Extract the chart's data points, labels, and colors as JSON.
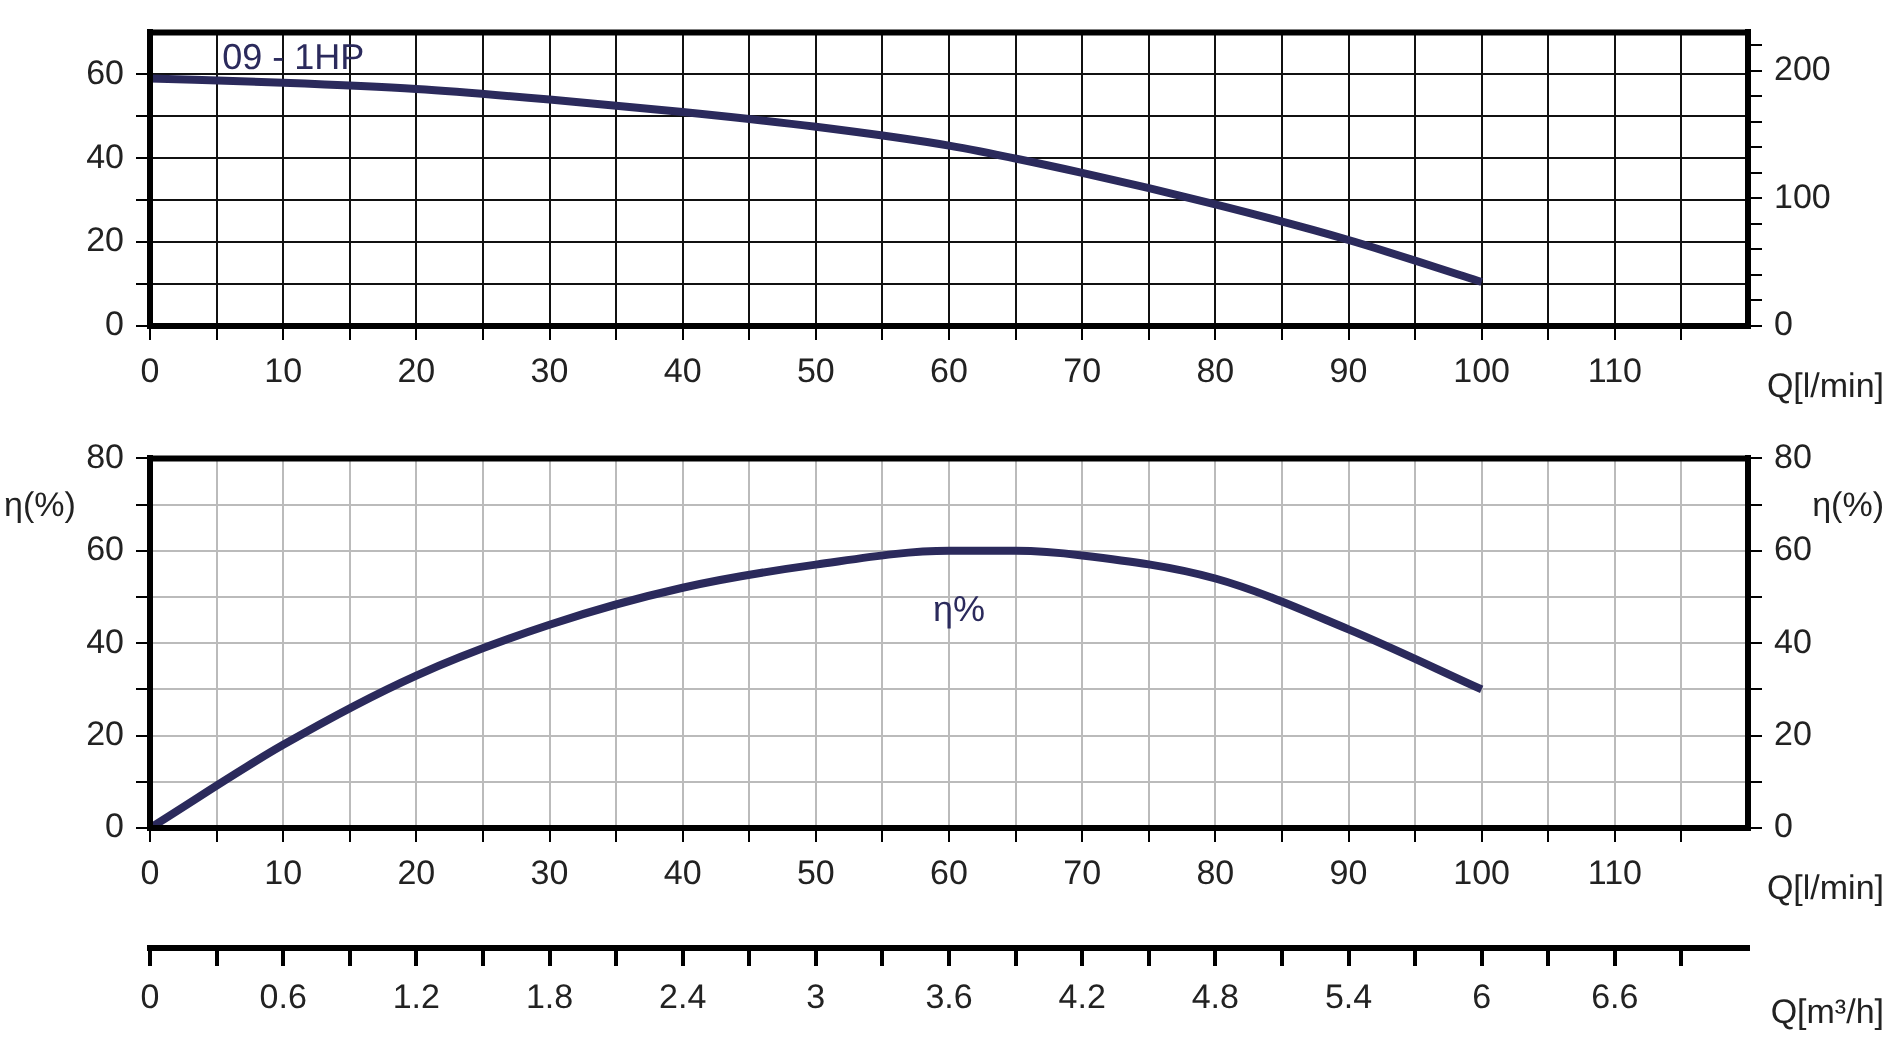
{
  "chart_data": [
    {
      "type": "line",
      "x": [
        0,
        10,
        20,
        30,
        40,
        50,
        60,
        70,
        80,
        90,
        100
      ],
      "series": [
        {
          "name": "09 - 1HP",
          "color": "#2b2a5c",
          "values": [
            59,
            58,
            56.5,
            54,
            51,
            47.5,
            43,
            36.5,
            29,
            20.5,
            10.5
          ]
        }
      ],
      "xlim": [
        0,
        120
      ],
      "xticks": [
        0,
        {
          "value": 5,
          "label": null
        },
        10,
        {
          "value": 15,
          "label": null
        },
        20,
        {
          "value": 25,
          "label": null
        },
        30,
        {
          "value": 35,
          "label": null
        },
        40,
        {
          "value": 45,
          "label": null
        },
        50,
        {
          "value": 55,
          "label": null
        },
        60,
        {
          "value": 65,
          "label": null
        },
        70,
        {
          "value": 75,
          "label": null
        },
        80,
        {
          "value": 85,
          "label": null
        },
        90,
        {
          "value": 95,
          "label": null
        },
        100,
        {
          "value": 105,
          "label": null
        },
        110,
        {
          "value": 115,
          "label": null
        }
      ],
      "xlabel": "Q[l/min]",
      "ylim": [
        0,
        70
      ],
      "yticks": [
        0,
        {
          "value": 10,
          "label": null
        },
        20,
        {
          "value": 30,
          "label": null
        },
        40,
        {
          "value": 50,
          "label": null
        },
        60
      ],
      "y2lim": [
        0,
        230
      ],
      "y2ticks": [
        0,
        {
          "value": 20,
          "label": null
        },
        {
          "value": 40,
          "label": null
        },
        {
          "value": 60,
          "label": null
        },
        {
          "value": 80,
          "label": null
        },
        100,
        {
          "value": 120,
          "label": null
        },
        {
          "value": 140,
          "label": null
        },
        {
          "value": 160,
          "label": null
        },
        {
          "value": 180,
          "label": null
        },
        200,
        {
          "value": 220,
          "label": null
        }
      ],
      "grid": true
    },
    {
      "type": "line",
      "x": [
        0,
        10,
        20,
        30,
        40,
        50,
        60,
        65,
        70,
        80,
        90,
        100
      ],
      "series": [
        {
          "name": "η%",
          "color": "#2b2a5c",
          "values": [
            0,
            18,
            33,
            44,
            52,
            57,
            60,
            60,
            59,
            54,
            43,
            30
          ]
        }
      ],
      "xlim": [
        0,
        120
      ],
      "xticks": [
        0,
        {
          "value": 5,
          "label": null
        },
        10,
        {
          "value": 15,
          "label": null
        },
        20,
        {
          "value": 25,
          "label": null
        },
        30,
        {
          "value": 35,
          "label": null
        },
        40,
        {
          "value": 45,
          "label": null
        },
        50,
        {
          "value": 55,
          "label": null
        },
        60,
        {
          "value": 65,
          "label": null
        },
        70,
        {
          "value": 75,
          "label": null
        },
        80,
        {
          "value": 85,
          "label": null
        },
        90,
        {
          "value": 95,
          "label": null
        },
        100,
        {
          "value": 105,
          "label": null
        },
        110,
        {
          "value": 115,
          "label": null
        }
      ],
      "xlabel": "Q[l/min]",
      "ylabel": "η(%)",
      "y2label": "η(%)",
      "ylim": [
        0,
        80
      ],
      "yticks": [
        0,
        {
          "value": 10,
          "label": null
        },
        20,
        {
          "value": 30,
          "label": null
        },
        40,
        {
          "value": 50,
          "label": null
        },
        60,
        {
          "value": 70,
          "label": null
        },
        80
      ],
      "y2lim": [
        0,
        80
      ],
      "y2ticks": [
        0,
        {
          "value": 10,
          "label": null
        },
        20,
        {
          "value": 30,
          "label": null
        },
        40,
        {
          "value": 50,
          "label": null
        },
        60,
        {
          "value": 70,
          "label": null
        },
        80
      ],
      "x2lim": [
        0,
        7.2
      ],
      "x2ticks": [
        0,
        {
          "value": 0.3,
          "label": null
        },
        0.6,
        {
          "value": 0.9,
          "label": null
        },
        1.2,
        {
          "value": 1.5,
          "label": null
        },
        1.8,
        {
          "value": 2.1,
          "label": null
        },
        2.4,
        {
          "value": 2.7,
          "label": null
        },
        3,
        {
          "value": 3.3,
          "label": null
        },
        3.6,
        {
          "value": 3.9,
          "label": null
        },
        4.2,
        {
          "value": 4.5,
          "label": null
        },
        4.8,
        {
          "value": 5.1,
          "label": null
        },
        5.4,
        {
          "value": 5.7,
          "label": null
        },
        6,
        {
          "value": 6.3,
          "label": null
        },
        6.6,
        {
          "value": 6.9,
          "label": null
        }
      ],
      "x2label": "Q[m³/h]",
      "grid": true
    }
  ]
}
